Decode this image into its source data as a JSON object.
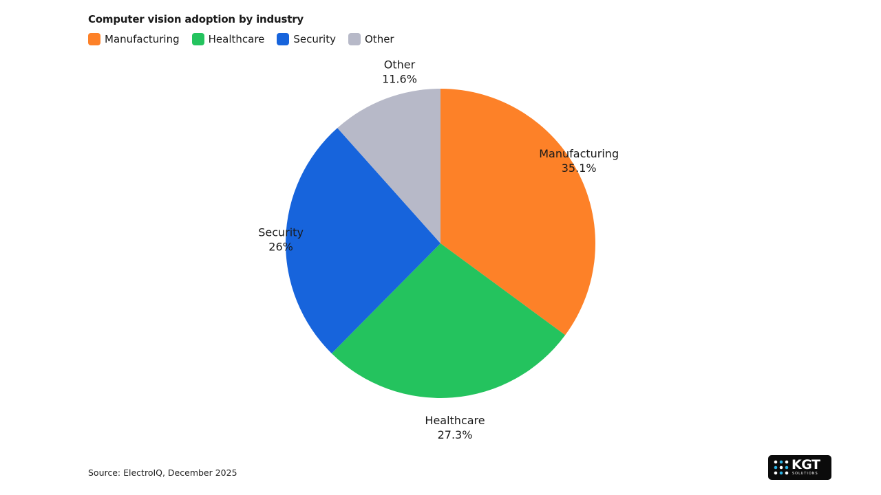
{
  "colors": {
    "manufacturing": "#fd8128",
    "healthcare": "#24c35e",
    "security": "#1764dc",
    "other": "#b7b9c8"
  },
  "chart_data": {
    "type": "pie",
    "title": "Computer vision adoption by industry",
    "legend_position": "top-left",
    "slices": [
      {
        "label": "Manufacturing",
        "value": 35.1,
        "display": "35.1%",
        "color": "#fd8128"
      },
      {
        "label": "Healthcare",
        "value": 27.3,
        "display": "27.3%",
        "color": "#24c35e"
      },
      {
        "label": "Security",
        "value": 26,
        "display": "26%",
        "color": "#1764dc"
      },
      {
        "label": "Other",
        "value": 11.6,
        "display": "11.6%",
        "color": "#b7b9c8"
      }
    ]
  },
  "footer": {
    "source": "Source: ElectroIQ, December 2025"
  },
  "logo": {
    "text": "KGT",
    "subtext": "SOLUTIONS"
  }
}
